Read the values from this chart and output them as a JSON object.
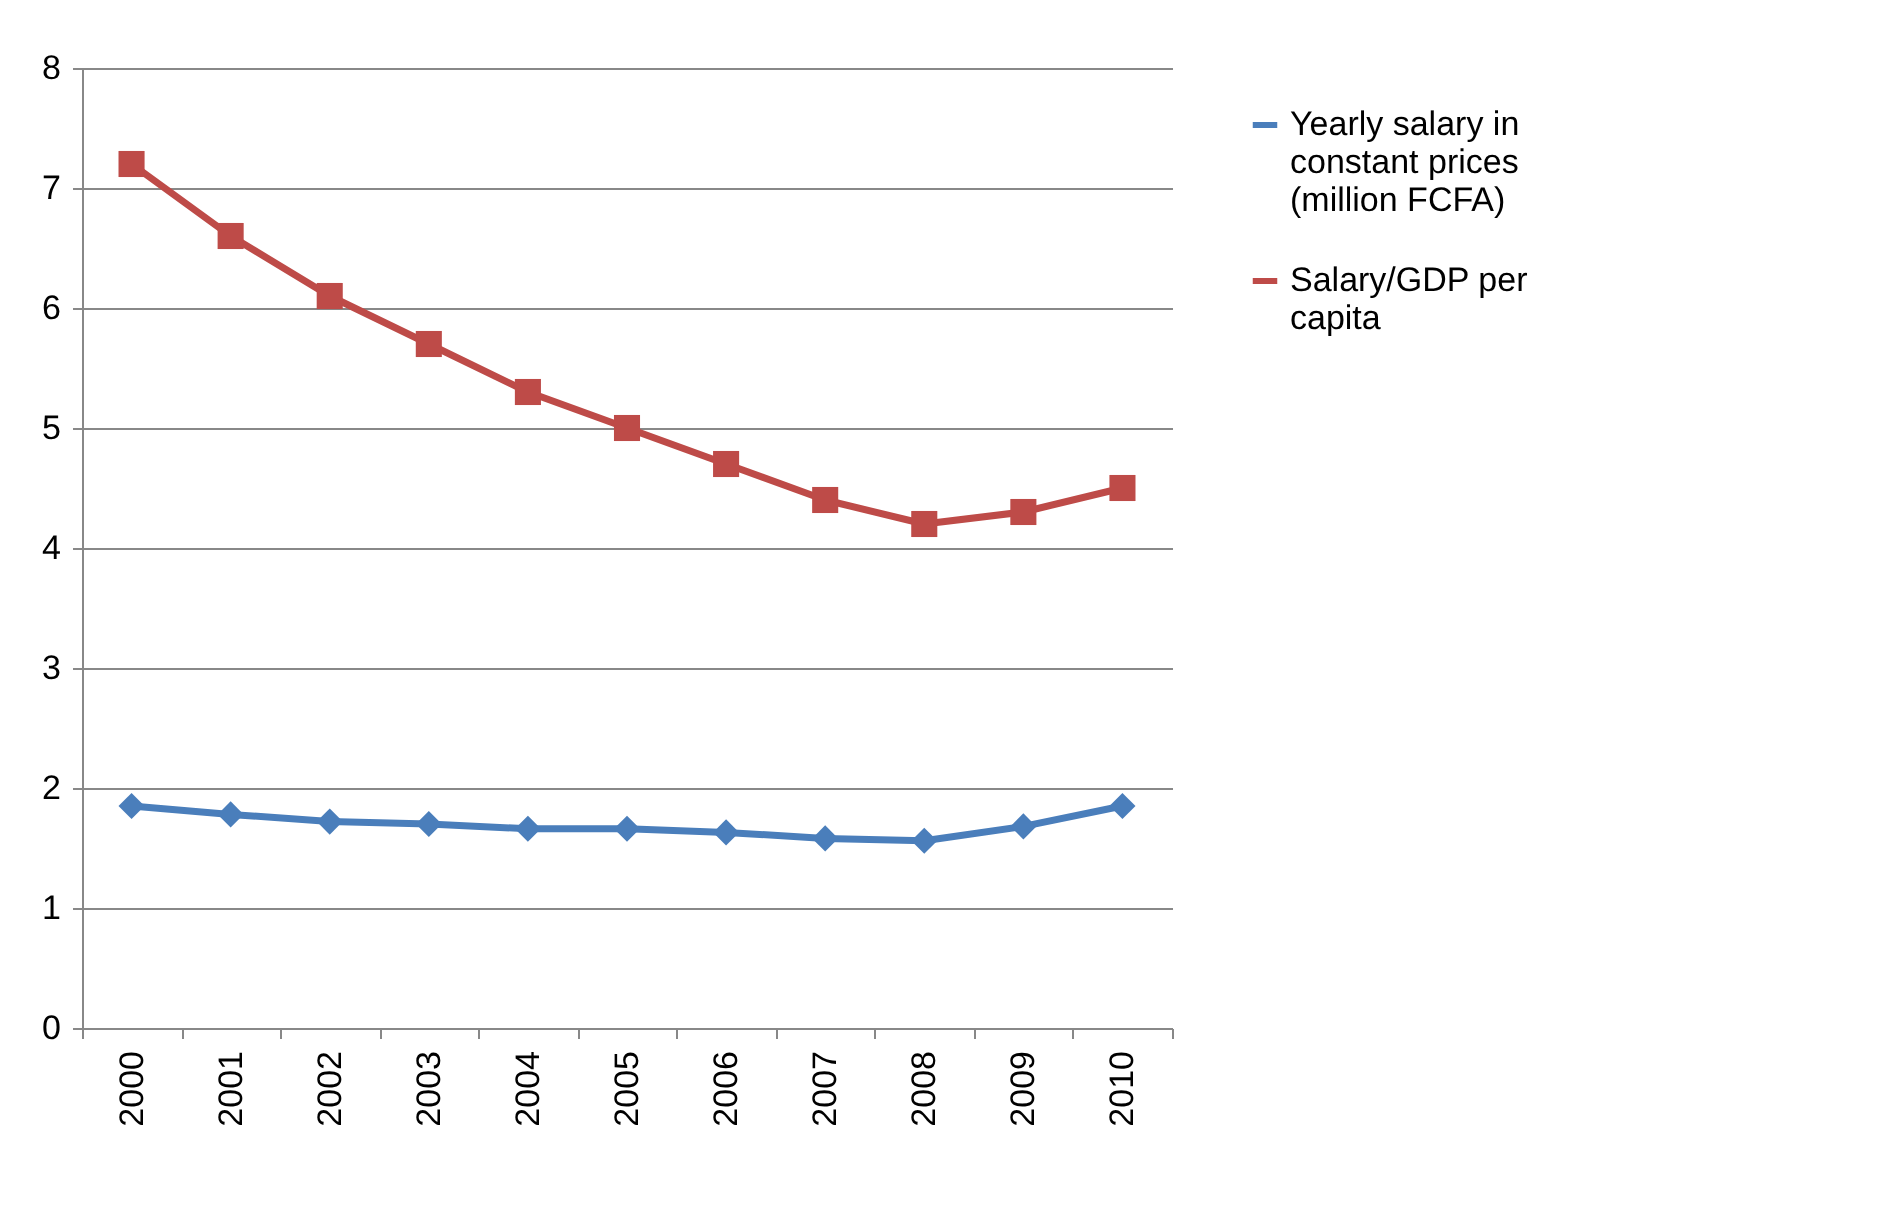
{
  "chart_data": {
    "type": "line",
    "categories": [
      "2000",
      "2001",
      "2002",
      "2003",
      "2004",
      "2005",
      "2006",
      "2007",
      "2008",
      "2009",
      "2010"
    ],
    "series": [
      {
        "name": "Yearly salary in constant prices (million FCFA)",
        "color": "#4a7ebb",
        "marker": "diamond",
        "values": [
          1.85,
          1.78,
          1.72,
          1.7,
          1.66,
          1.66,
          1.63,
          1.58,
          1.56,
          1.68,
          1.85
        ]
      },
      {
        "name": "Salary/GDP per capita",
        "color": "#be4b48",
        "marker": "square",
        "values": [
          7.2,
          6.6,
          6.1,
          5.7,
          5.3,
          5.0,
          4.7,
          4.4,
          4.2,
          4.3,
          4.5
        ]
      }
    ],
    "ylim": [
      0,
      8
    ],
    "yticks": [
      0,
      1,
      2,
      3,
      4,
      5,
      6,
      7,
      8
    ],
    "grid": "y",
    "legend": "right"
  }
}
